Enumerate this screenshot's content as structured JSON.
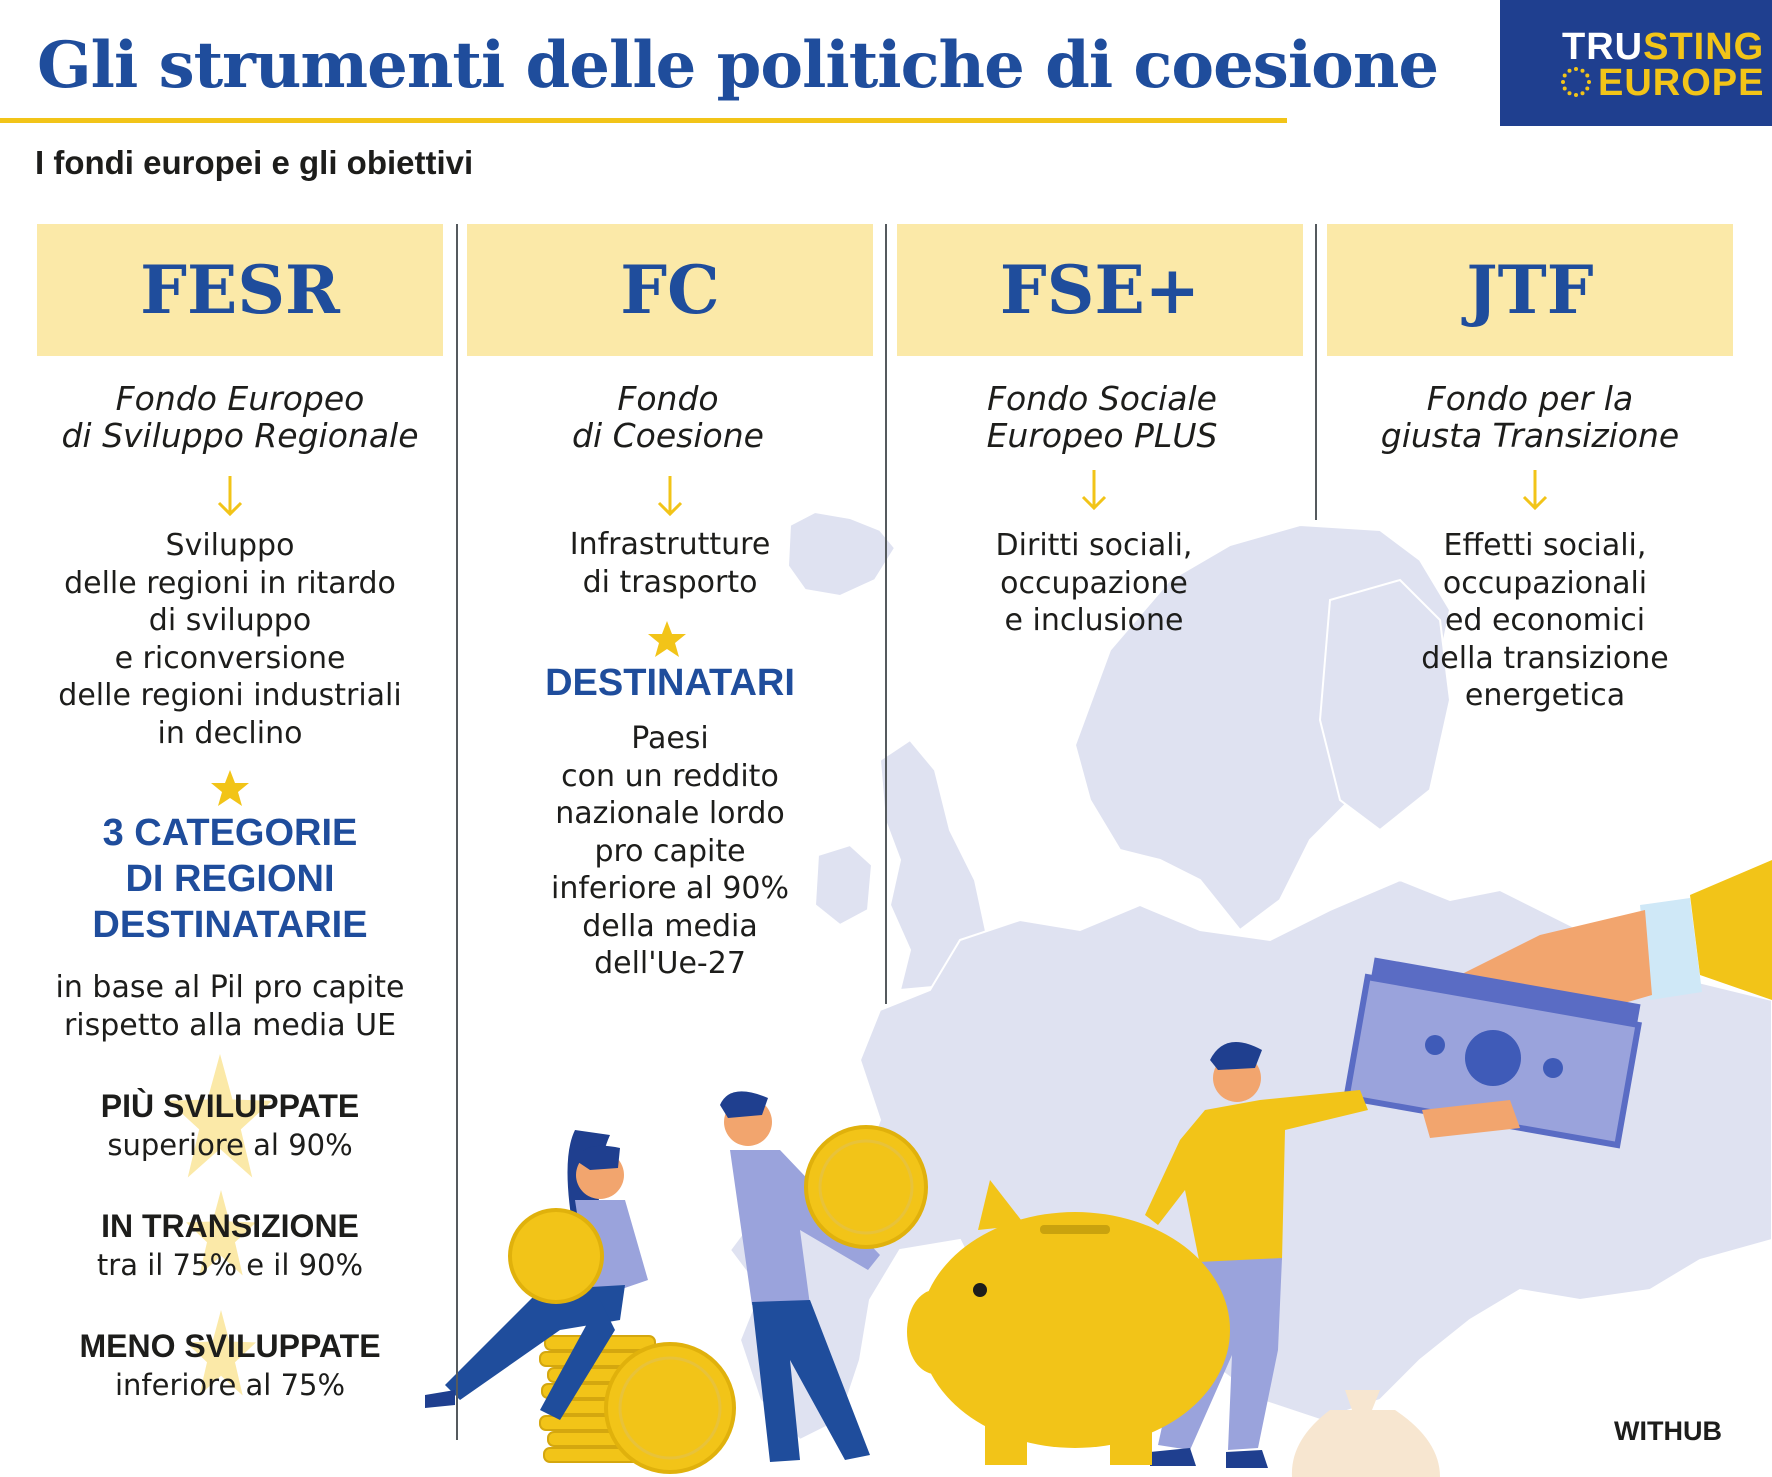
{
  "header": {
    "title": "Gli strumenti delle politiche di coesione",
    "subtitle": "I fondi europei e gli obiettivi"
  },
  "logo": {
    "line1_white": "TRU",
    "line1_yellow": "STING",
    "line2": "EUROPE"
  },
  "funds": [
    {
      "abbr": "FESR",
      "name_line1": "Fondo Europeo",
      "name_line2": "di Sviluppo Regionale",
      "objective": [
        "Sviluppo",
        "delle regioni in ritardo",
        "di sviluppo",
        "e riconversione",
        "delle regioni industriali",
        "in declino"
      ]
    },
    {
      "abbr": "FC",
      "name_line1": "Fondo",
      "name_line2": "di Coesione",
      "objective": [
        "Infrastrutture",
        "di trasporto"
      ]
    },
    {
      "abbr": "FSE+",
      "name_line1": "Fondo Sociale",
      "name_line2": "Europeo PLUS",
      "objective": [
        "Diritti sociali,",
        "occupazione",
        "e inclusione"
      ]
    },
    {
      "abbr": "JTF",
      "name_line1": "Fondo per la",
      "name_line2": "giusta Transizione",
      "objective": [
        "Effetti sociali,",
        "occupazionali",
        "ed economici",
        "della transizione",
        "energetica"
      ]
    }
  ],
  "fesr_categories": {
    "heading": [
      "3 CATEGORIE",
      "DI REGIONI",
      "DESTINATARIE"
    ],
    "criteria": [
      "in base al Pil pro capite",
      "rispetto alla media UE"
    ],
    "items": [
      {
        "title": "PIÙ SVILUPPATE",
        "text": "superiore al 90%"
      },
      {
        "title": "IN TRANSIZIONE",
        "text": "tra il 75% e il 90%"
      },
      {
        "title": "MENO SVILUPPATE",
        "text": "inferiore al 75%"
      }
    ]
  },
  "fc_recipients": {
    "heading": "DESTINATARI",
    "text": [
      "Paesi",
      "con un reddito",
      "nazionale lordo",
      "pro capite",
      "inferiore al 90%",
      "della media",
      "dell'Ue-27"
    ]
  },
  "credit": "WITHUB",
  "colors": {
    "brand_blue": "#1f4d9c",
    "logo_blue": "#1f3f8f",
    "yellow": "#f2c418",
    "header_fill": "#fbe9a8",
    "map": "#dfe2f1",
    "lavender": "#9aa3dc"
  },
  "icons": [
    "arrow-down-icon",
    "star-icon",
    "eu-stars-icon"
  ]
}
